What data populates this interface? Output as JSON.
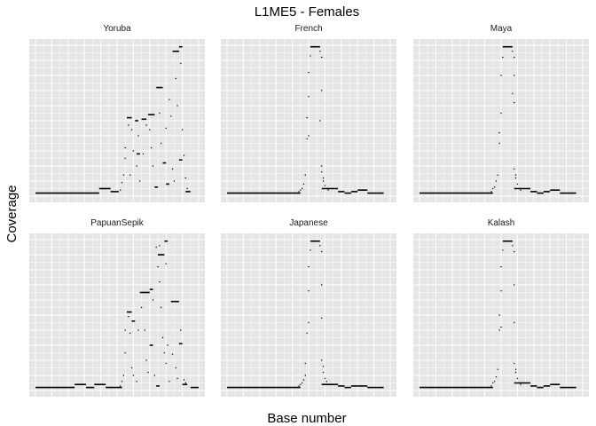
{
  "chart_data": {
    "type": "scatter",
    "title": "L1ME5 - Females",
    "xlabel": "Base number",
    "ylabel": "Coverage",
    "xlim": [
      0,
      100
    ],
    "ylim": [
      0,
      100
    ],
    "grid": true,
    "legend": "none",
    "colors": {
      "panel": "#e5e5e5",
      "grid": "#ffffff",
      "points": "#000000"
    },
    "panels": [
      {
        "name": "Yoruba",
        "segments": [
          [
            [
              0,
              2
            ],
            [
              39,
              2
            ]
          ],
          [
            [
              39,
              5
            ],
            [
              46,
              5
            ]
          ],
          [
            [
              46,
              3
            ],
            [
              51,
              3
            ]
          ],
          [
            [
              56,
              52
            ],
            [
              59,
              52
            ]
          ],
          [
            [
              61,
              50
            ],
            [
              63,
              50
            ]
          ],
          [
            [
              62,
              28
            ],
            [
              64,
              28
            ]
          ],
          [
            [
              65,
              51
            ],
            [
              68,
              51
            ]
          ],
          [
            [
              69,
              54
            ],
            [
              73,
              54
            ]
          ],
          [
            [
              74,
              72
            ],
            [
              78,
              72
            ]
          ],
          [
            [
              84,
              96
            ],
            [
              88,
              96
            ]
          ],
          [
            [
              88,
              99
            ],
            [
              90,
              99
            ]
          ],
          [
            [
              88,
              24
            ],
            [
              90,
              24
            ]
          ],
          [
            [
              92,
              3
            ],
            [
              95,
              3
            ]
          ],
          [
            [
              73,
              6
            ],
            [
              75,
              6
            ]
          ],
          [
            [
              78,
              22
            ],
            [
              80,
              22
            ]
          ],
          [
            [
              80,
              8
            ],
            [
              82,
              8
            ]
          ]
        ],
        "points": [
          [
            52,
            4
          ],
          [
            53,
            9
          ],
          [
            54,
            14
          ],
          [
            55,
            25
          ],
          [
            55,
            32
          ],
          [
            57,
            47
          ],
          [
            59,
            44
          ],
          [
            60,
            30
          ],
          [
            62,
            20
          ],
          [
            64,
            10
          ],
          [
            66,
            28
          ],
          [
            68,
            47
          ],
          [
            70,
            44
          ],
          [
            71,
            32
          ],
          [
            72,
            20
          ],
          [
            76,
            55
          ],
          [
            77,
            35
          ],
          [
            80,
            45
          ],
          [
            82,
            64
          ],
          [
            83,
            53
          ],
          [
            84,
            18
          ],
          [
            85,
            10
          ],
          [
            86,
            78
          ],
          [
            87,
            60
          ],
          [
            90,
            44
          ],
          [
            91,
            27
          ],
          [
            92,
            12
          ],
          [
            93,
            5
          ],
          [
            89,
            88
          ],
          [
            63,
            40
          ],
          [
            58,
            14
          ]
        ]
      },
      {
        "name": "French",
        "segments": [
          [
            [
              0,
              2
            ],
            [
              45,
              2
            ]
          ],
          [
            [
              51,
              99
            ],
            [
              57,
              99
            ]
          ],
          [
            [
              58,
              5
            ],
            [
              68,
              5
            ]
          ],
          [
            [
              68,
              3
            ],
            [
              72,
              3
            ]
          ],
          [
            [
              72,
              2
            ],
            [
              76,
              2
            ]
          ],
          [
            [
              76,
              3
            ],
            [
              80,
              3
            ]
          ],
          [
            [
              80,
              4
            ],
            [
              86,
              4
            ]
          ],
          [
            [
              86,
              2
            ],
            [
              92,
              2
            ]
          ],
          [
            [
              92,
              2
            ],
            [
              96,
              2
            ]
          ]
        ],
        "points": [
          [
            44,
            3
          ],
          [
            45,
            4
          ],
          [
            46,
            5
          ],
          [
            47,
            8
          ],
          [
            48,
            14
          ],
          [
            49,
            38
          ],
          [
            49,
            52
          ],
          [
            50,
            66
          ],
          [
            50,
            82
          ],
          [
            51,
            93
          ],
          [
            57,
            96
          ],
          [
            58,
            92
          ],
          [
            58,
            70
          ],
          [
            57,
            50
          ],
          [
            58,
            20
          ],
          [
            58,
            16
          ],
          [
            59,
            10
          ],
          [
            60,
            7
          ],
          [
            61,
            5
          ],
          [
            62,
            4
          ],
          [
            50,
            40
          ],
          [
            59,
            12
          ]
        ]
      },
      {
        "name": "Maya",
        "segments": [
          [
            [
              0,
              2
            ],
            [
              45,
              2
            ]
          ],
          [
            [
              51,
              99
            ],
            [
              57,
              99
            ]
          ],
          [
            [
              58,
              5
            ],
            [
              68,
              5
            ]
          ],
          [
            [
              68,
              3
            ],
            [
              72,
              3
            ]
          ],
          [
            [
              72,
              2
            ],
            [
              76,
              2
            ]
          ],
          [
            [
              76,
              3
            ],
            [
              80,
              3
            ]
          ],
          [
            [
              80,
              4
            ],
            [
              86,
              4
            ]
          ],
          [
            [
              86,
              2
            ],
            [
              92,
              2
            ]
          ],
          [
            [
              92,
              2
            ],
            [
              96,
              2
            ]
          ]
        ],
        "points": [
          [
            44,
            3
          ],
          [
            45,
            5
          ],
          [
            46,
            6
          ],
          [
            47,
            10
          ],
          [
            48,
            14
          ],
          [
            49,
            35
          ],
          [
            49,
            42
          ],
          [
            50,
            55
          ],
          [
            50,
            80
          ],
          [
            51,
            92
          ],
          [
            57,
            96
          ],
          [
            58,
            92
          ],
          [
            58,
            80
          ],
          [
            58,
            62
          ],
          [
            58,
            18
          ],
          [
            59,
            12
          ],
          [
            60,
            8
          ],
          [
            61,
            5
          ],
          [
            62,
            4
          ],
          [
            57,
            68
          ],
          [
            59,
            14
          ]
        ]
      },
      {
        "name": "PapuanSepik",
        "segments": [
          [
            [
              0,
              2
            ],
            [
              24,
              2
            ]
          ],
          [
            [
              24,
              4
            ],
            [
              31,
              4
            ]
          ],
          [
            [
              31,
              2
            ],
            [
              36,
              2
            ]
          ],
          [
            [
              36,
              4
            ],
            [
              43,
              4
            ]
          ],
          [
            [
              43,
              2
            ],
            [
              53,
              2
            ]
          ],
          [
            [
              56,
              52
            ],
            [
              59,
              52
            ]
          ],
          [
            [
              59,
              46
            ],
            [
              61,
              46
            ]
          ],
          [
            [
              64,
              65
            ],
            [
              70,
              65
            ]
          ],
          [
            [
              70,
              67
            ],
            [
              72,
              67
            ]
          ],
          [
            [
              75,
              90
            ],
            [
              79,
              90
            ]
          ],
          [
            [
              79,
              99
            ],
            [
              81,
              99
            ]
          ],
          [
            [
              83,
              59
            ],
            [
              88,
              59
            ]
          ],
          [
            [
              88,
              31
            ],
            [
              90,
              31
            ]
          ],
          [
            [
              90,
              4
            ],
            [
              93,
              4
            ]
          ],
          [
            [
              95,
              2
            ],
            [
              100,
              2
            ]
          ],
          [
            [
              70,
              30
            ],
            [
              72,
              30
            ]
          ],
          [
            [
              74,
              3
            ],
            [
              76,
              3
            ]
          ]
        ],
        "points": [
          [
            52,
            3
          ],
          [
            53,
            6
          ],
          [
            54,
            10
          ],
          [
            55,
            25
          ],
          [
            55,
            40
          ],
          [
            57,
            49
          ],
          [
            58,
            38
          ],
          [
            59,
            15
          ],
          [
            60,
            10
          ],
          [
            62,
            6
          ],
          [
            63,
            40
          ],
          [
            65,
            55
          ],
          [
            67,
            40
          ],
          [
            68,
            20
          ],
          [
            69,
            12
          ],
          [
            72,
            60
          ],
          [
            73,
            10
          ],
          [
            74,
            95
          ],
          [
            75,
            82
          ],
          [
            76,
            72
          ],
          [
            77,
            55
          ],
          [
            78,
            35
          ],
          [
            79,
            25
          ],
          [
            80,
            18
          ],
          [
            81,
            30
          ],
          [
            82,
            6
          ],
          [
            84,
            24
          ],
          [
            86,
            15
          ],
          [
            87,
            8
          ],
          [
            89,
            40
          ],
          [
            91,
            7
          ],
          [
            92,
            5
          ],
          [
            76,
            96
          ],
          [
            80,
            84
          ]
        ]
      },
      {
        "name": "Japanese",
        "segments": [
          [
            [
              0,
              2
            ],
            [
              45,
              2
            ]
          ],
          [
            [
              51,
              99
            ],
            [
              57,
              99
            ]
          ],
          [
            [
              58,
              4
            ],
            [
              68,
              4
            ]
          ],
          [
            [
              68,
              3
            ],
            [
              72,
              3
            ]
          ],
          [
            [
              72,
              2
            ],
            [
              76,
              2
            ]
          ],
          [
            [
              76,
              3
            ],
            [
              80,
              3
            ]
          ],
          [
            [
              80,
              3
            ],
            [
              86,
              3
            ]
          ],
          [
            [
              86,
              2
            ],
            [
              92,
              2
            ]
          ],
          [
            [
              92,
              2
            ],
            [
              96,
              2
            ]
          ]
        ],
        "points": [
          [
            44,
            3
          ],
          [
            45,
            4
          ],
          [
            46,
            5
          ],
          [
            47,
            7
          ],
          [
            48,
            10
          ],
          [
            48,
            18
          ],
          [
            49,
            38
          ],
          [
            50,
            66
          ],
          [
            50,
            82
          ],
          [
            51,
            93
          ],
          [
            57,
            96
          ],
          [
            58,
            92
          ],
          [
            58,
            70
          ],
          [
            58,
            48
          ],
          [
            58,
            20
          ],
          [
            59,
            12
          ],
          [
            60,
            8
          ],
          [
            61,
            6
          ],
          [
            62,
            4
          ],
          [
            50,
            45
          ],
          [
            59,
            16
          ]
        ]
      },
      {
        "name": "Kalash",
        "segments": [
          [
            [
              0,
              2
            ],
            [
              45,
              2
            ]
          ],
          [
            [
              51,
              99
            ],
            [
              57,
              99
            ]
          ],
          [
            [
              58,
              5
            ],
            [
              68,
              5
            ]
          ],
          [
            [
              68,
              3
            ],
            [
              72,
              3
            ]
          ],
          [
            [
              72,
              2
            ],
            [
              76,
              2
            ]
          ],
          [
            [
              76,
              3
            ],
            [
              80,
              3
            ]
          ],
          [
            [
              80,
              4
            ],
            [
              86,
              4
            ]
          ],
          [
            [
              86,
              2
            ],
            [
              92,
              2
            ]
          ],
          [
            [
              92,
              2
            ],
            [
              96,
              2
            ]
          ]
        ],
        "points": [
          [
            44,
            3
          ],
          [
            45,
            5
          ],
          [
            46,
            6
          ],
          [
            47,
            9
          ],
          [
            48,
            14
          ],
          [
            49,
            40
          ],
          [
            49,
            50
          ],
          [
            50,
            66
          ],
          [
            50,
            82
          ],
          [
            51,
            93
          ],
          [
            57,
            96
          ],
          [
            58,
            92
          ],
          [
            58,
            70
          ],
          [
            58,
            45
          ],
          [
            58,
            18
          ],
          [
            59,
            12
          ],
          [
            60,
            8
          ],
          [
            61,
            5
          ],
          [
            62,
            4
          ],
          [
            50,
            42
          ],
          [
            59,
            14
          ]
        ]
      }
    ]
  }
}
